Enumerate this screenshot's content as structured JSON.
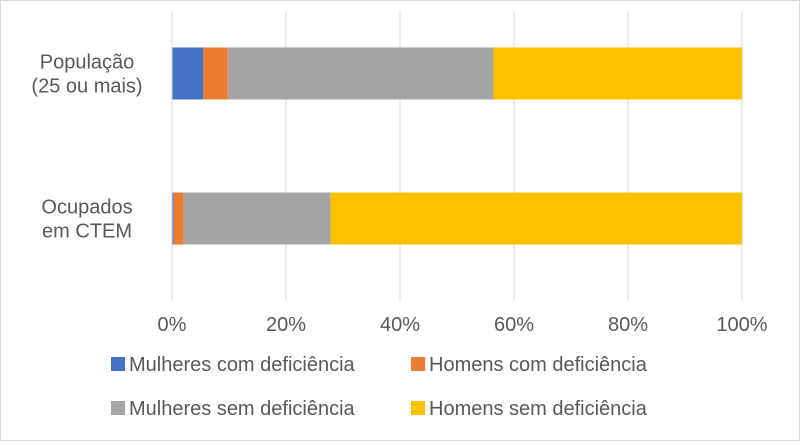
{
  "chart_data": {
    "type": "bar",
    "orientation": "horizontal",
    "stacked": "percent",
    "title": "",
    "xlabel": "",
    "ylabel": "",
    "categories": [
      "População (25 ou mais)",
      "Ocupados em CTEM"
    ],
    "category_lines": [
      [
        "População",
        "(25 ou mais)"
      ],
      [
        "Ocupados",
        "em CTEM"
      ]
    ],
    "series": [
      {
        "name": "Mulheres com deficiência",
        "color": "#4472c4",
        "values": [
          5.5,
          0.3
        ]
      },
      {
        "name": "Homens com deficiência",
        "color": "#ed7d31",
        "values": [
          4.3,
          1.7
        ]
      },
      {
        "name": "Mulheres sem deficiência",
        "color": "#a5a5a5",
        "values": [
          46.6,
          25.8
        ]
      },
      {
        "name": "Homens sem deficiência",
        "color": "#ffc000",
        "values": [
          43.6,
          72.2
        ]
      }
    ],
    "xlim": [
      0,
      100
    ],
    "x_ticks": [
      0,
      20,
      40,
      60,
      80,
      100
    ],
    "x_tick_labels": [
      "0%",
      "20%",
      "40%",
      "60%",
      "80%",
      "100%"
    ],
    "grid": true,
    "legend_position": "bottom"
  }
}
